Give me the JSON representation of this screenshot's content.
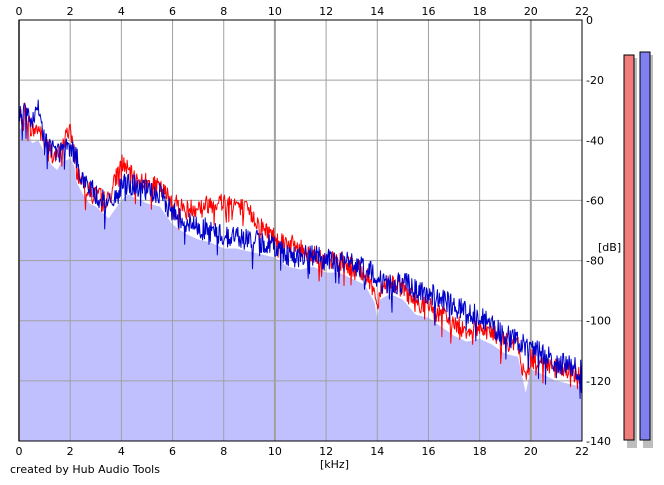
{
  "chart_data": {
    "type": "area",
    "xlabel": "[kHz]",
    "ylabel": "[dB]",
    "xlim": [
      0,
      22
    ],
    "ylim": [
      -140,
      0
    ],
    "x_ticks": [
      0,
      2,
      4,
      6,
      8,
      10,
      12,
      14,
      16,
      18,
      20,
      22
    ],
    "y_ticks": [
      0,
      -20,
      -40,
      -60,
      -80,
      -100,
      -120,
      -140
    ],
    "grid": true,
    "footer": "created by Hub Audio Tools",
    "colors": {
      "fill": "#c0c0ff",
      "red": "#ff0000",
      "blue": "#0000cc",
      "grid": "#a0a0a0",
      "meter_red": "#f07c7c",
      "meter_blue": "#8080f0",
      "meter_shadow": "#bdbdbd"
    },
    "series": [
      {
        "color": "#ff0000",
        "x": [
          0.0,
          0.25,
          0.5,
          0.75,
          1.0,
          1.25,
          1.5,
          1.75,
          2.0,
          2.25,
          2.5,
          2.75,
          3.0,
          3.5,
          4.0,
          4.25,
          4.5,
          5.0,
          5.5,
          6.0,
          6.5,
          7.0,
          7.5,
          8.0,
          8.5,
          9.0,
          9.5,
          10.0,
          10.5,
          11.0,
          11.5,
          12.0,
          12.5,
          13.0,
          13.5,
          13.9,
          14.0,
          14.1,
          14.5,
          15.0,
          15.5,
          16.0,
          16.5,
          17.0,
          17.5,
          18.0,
          18.5,
          19.0,
          19.5,
          19.8,
          20.0,
          20.5,
          21.0,
          21.5,
          22.0
        ],
        "values": [
          -33,
          -30,
          -37,
          -36,
          -40,
          -44,
          -46,
          -41,
          -35,
          -50,
          -54,
          -57,
          -58,
          -60,
          -47,
          -50,
          -53,
          -54,
          -56,
          -60,
          -63,
          -62,
          -61,
          -60,
          -61,
          -64,
          -69,
          -72,
          -74,
          -76,
          -78,
          -80,
          -80,
          -82,
          -84,
          -90,
          -96,
          -89,
          -87,
          -89,
          -94,
          -95,
          -98,
          -101,
          -103,
          -102,
          -104,
          -107,
          -108,
          -120,
          -112,
          -114,
          -116,
          -117,
          -118
        ]
      },
      {
        "color": "#0000cc",
        "x": [
          0.0,
          0.25,
          0.5,
          0.75,
          1.0,
          1.25,
          1.5,
          1.75,
          2.0,
          2.25,
          2.5,
          2.75,
          3.0,
          3.5,
          4.0,
          4.25,
          4.5,
          5.0,
          5.5,
          6.0,
          6.5,
          7.0,
          7.5,
          8.0,
          8.5,
          9.0,
          9.5,
          10.0,
          10.5,
          11.0,
          11.5,
          12.0,
          12.5,
          13.0,
          13.5,
          14.0,
          14.5,
          15.0,
          15.5,
          16.0,
          16.5,
          17.0,
          17.5,
          18.0,
          18.5,
          19.0,
          19.5,
          20.0,
          20.5,
          21.0,
          21.5,
          22.0
        ],
        "values": [
          -32,
          -30,
          -35,
          -30,
          -40,
          -42,
          -44,
          -43,
          -42,
          -46,
          -53,
          -56,
          -58,
          -62,
          -56,
          -54,
          -55,
          -57,
          -58,
          -64,
          -67,
          -69,
          -70,
          -72,
          -72,
          -73,
          -74,
          -75,
          -78,
          -79,
          -78,
          -80,
          -80,
          -81,
          -83,
          -85,
          -88,
          -87,
          -90,
          -91,
          -93,
          -95,
          -97,
          -98,
          -102,
          -105,
          -107,
          -109,
          -111,
          -114,
          -115,
          -117
        ]
      }
    ]
  }
}
